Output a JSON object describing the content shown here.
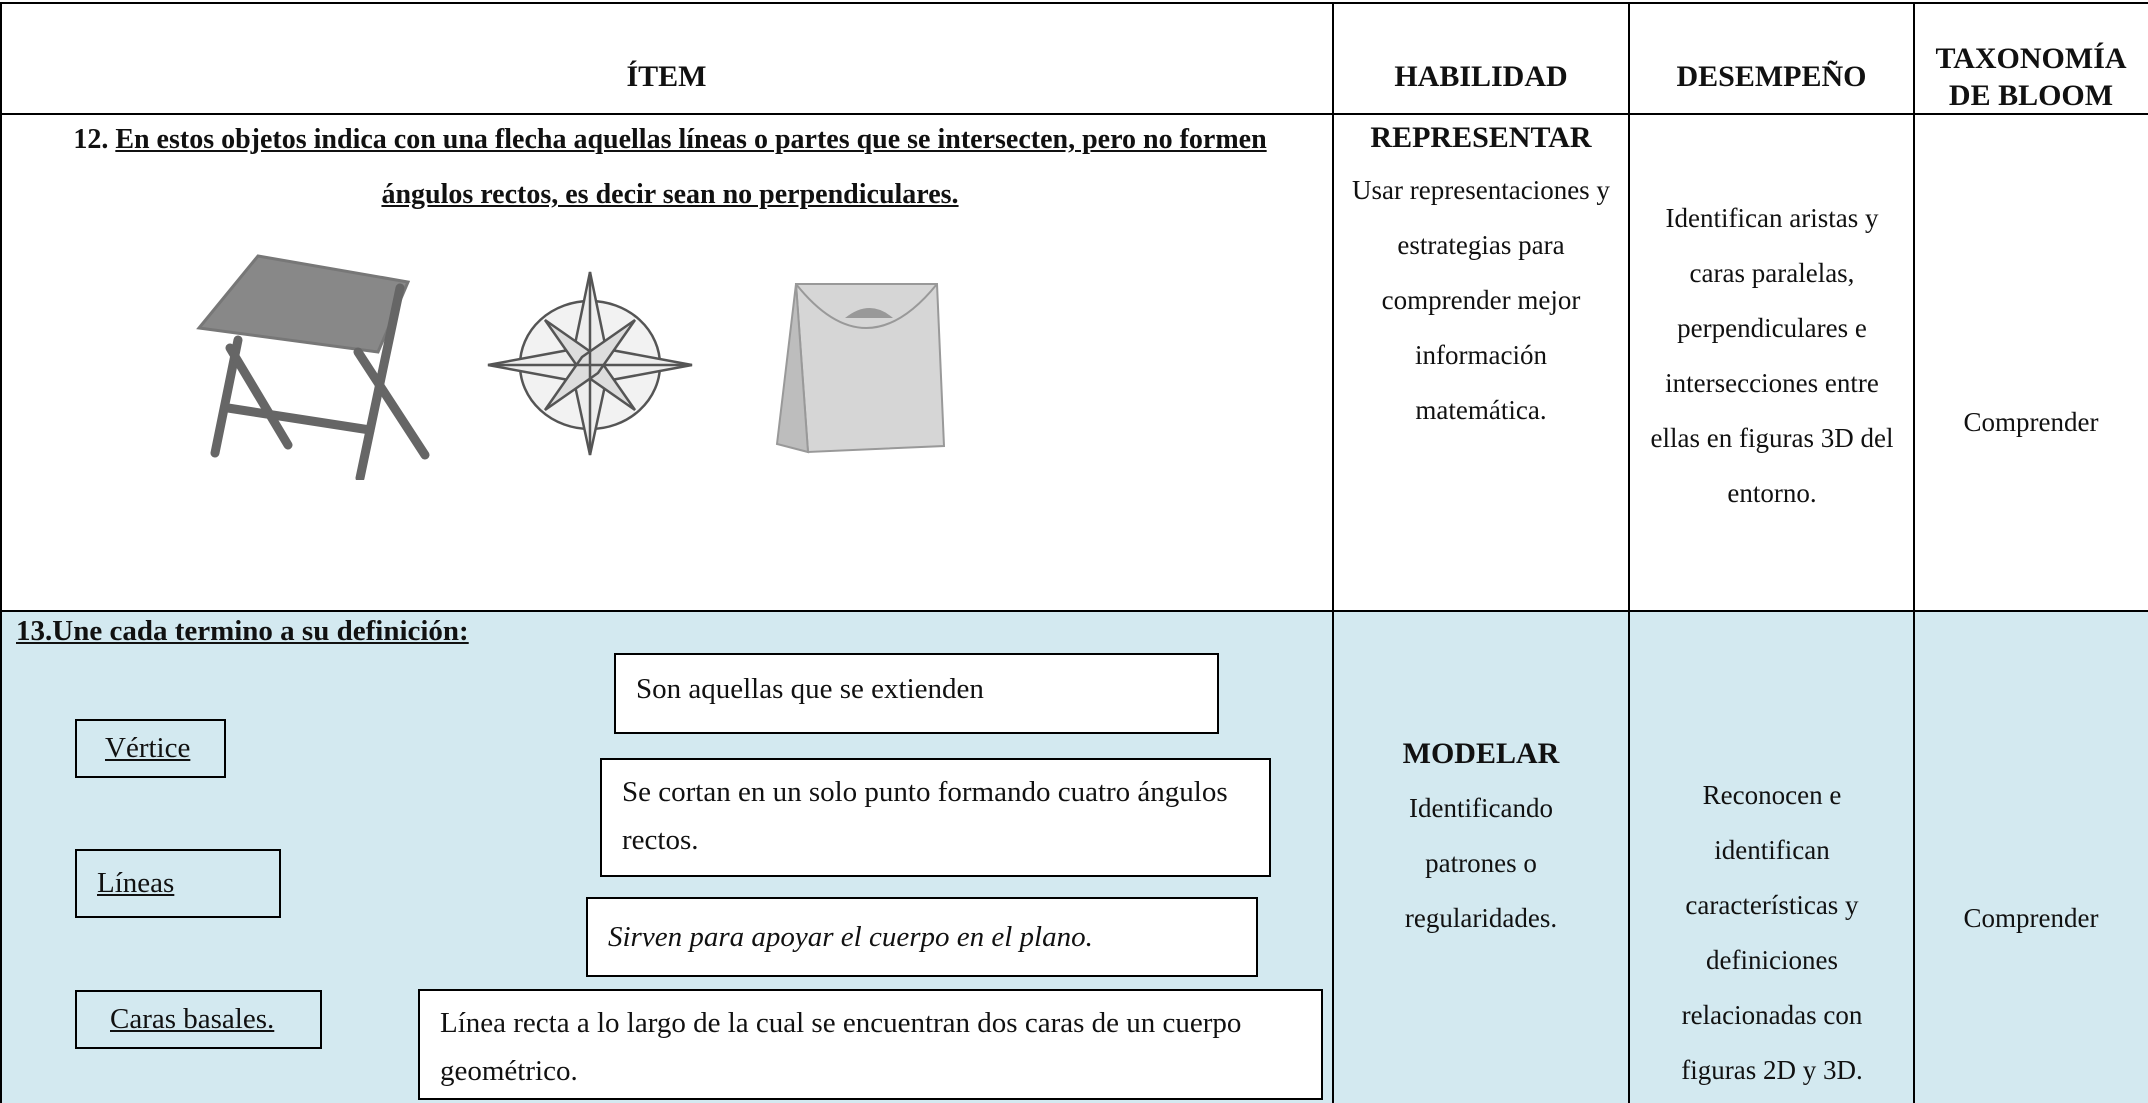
{
  "header": {
    "item": "ÍTEM",
    "habilidad": "HABILIDAD",
    "desempeno": "DESEMPEÑO",
    "taxonomia": "TAXONOMÍA DE BLOOM"
  },
  "rows": [
    {
      "number": "12.",
      "question": "En estos objetos indica con una flecha aquellas líneas o partes que se intersecten, pero no formen ángulos rectos, es decir sean no perpendiculares.",
      "habilidad_title": "REPRESENTAR",
      "habilidad_text": "Usar representaciones y estrategias para comprender mejor información matemática.",
      "desempeno": "Identifican aristas y caras paralelas, perpendiculares e intersecciones entre ellas en figuras 3D del entorno.",
      "taxonomia": "Comprender"
    },
    {
      "question": "13.Une cada termino a su definición:",
      "terms": [
        "Vértice",
        "Líneas",
        "Caras basales."
      ],
      "definitions": [
        "Son aquellas que se extienden",
        "Se cortan en un solo punto formando cuatro ángulos rectos.",
        "Sirven para apoyar el cuerpo en el plano.",
        "Línea recta a lo largo de la cual se encuentran dos caras de un cuerpo geométrico."
      ],
      "habilidad_title": "MODELAR",
      "habilidad_text": "Identificando patrones o regularidades.",
      "desempeno": "Reconocen e identifican características y definiciones relacionadas con figuras 2D y 3D.",
      "taxonomia": "Comprender"
    }
  ]
}
